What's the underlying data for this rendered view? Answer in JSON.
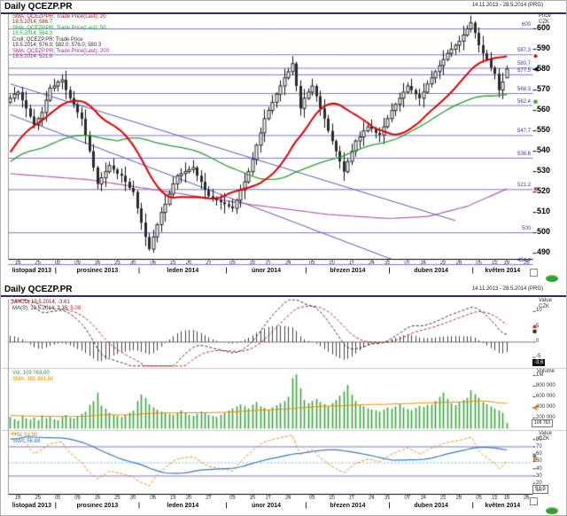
{
  "window1": {
    "title": "Daily QCEZP.PR",
    "date_range": "14.11.2013 - 28.5.2014 (PRG)",
    "y_axis": {
      "unit1": "Price",
      "unit2": "CZK"
    },
    "legend": [
      {
        "line1": "SMA; QCEZP.PR; Trade Price(Last); 20",
        "line2": "19.5.2014; 586.7",
        "color": "#cc1111"
      },
      {
        "line1": "SMA; QCEZP.PR; Trade Price(Last); 50",
        "line2": "19.5.2014; 564.3",
        "color": "#2e9e2e"
      },
      {
        "line1": "Cndl; QCEZP.PR; Trade Price",
        "line2": "19.5.2014; 576.0; 582.0; 576.0; 580.3",
        "color": "#333333"
      },
      {
        "line1": "SMA; QCEZP.PR; Trade Price(Last); 200",
        "line2": "19.5.2014; 521.6",
        "color": "#a03090"
      }
    ]
  },
  "window2": {
    "title": "Daily QCEZP.PR",
    "date_range": "14.11.2013 - 28.5.2014 (PRG)",
    "panes": {
      "macd": {
        "unit1": "Value",
        "unit2": "CZK",
        "legend1": "MACD; 19.5.2014; -3.61",
        "legend2a": "MA(S); 19.5.2014; 3.35; ",
        "legend2b": "5.08",
        "legend_colors": [
          "#8b2020",
          "#333333",
          "#cc2222"
        ],
        "badge": "-3.6"
      },
      "volume": {
        "unit": "Volume",
        "legend1": "Vol; 109 763,00",
        "legend2": "SMA; 391 381,60",
        "legend_colors": [
          "#2e9e2e",
          "#ee8800"
        ],
        "badge": "109 763"
      },
      "rsi": {
        "unit1": "Value",
        "unit2": "CZK",
        "legend1": "RSI; 51.90",
        "legend2": "SMA; 56.88",
        "legend_colors": [
          "#ee8800",
          "#3a7abf"
        ],
        "badge": "51.9"
      }
    }
  },
  "chart_data": {
    "type": "candlestick",
    "symbol": "QCEZP.PR",
    "period": "Daily",
    "x_range": "14.11.2013 - 28.5.2014",
    "ylim": [
      487,
      607
    ],
    "total_slots": 132,
    "y_ticks": [
      600,
      590,
      580,
      570,
      560,
      550,
      540,
      530,
      520,
      510,
      500,
      490
    ],
    "levels": [
      {
        "v": 600.0,
        "label": "600"
      },
      {
        "v": 587.3,
        "label": "587.3"
      },
      {
        "v": 580.7,
        "label": "580.7"
      },
      {
        "v": 577.5,
        "label": "577.5"
      },
      {
        "v": 568.3,
        "label": "568.3"
      },
      {
        "v": 562.4,
        "label": "562.4"
      },
      {
        "v": 547.7,
        "label": "547.7"
      },
      {
        "v": 536.6,
        "label": "536.6"
      },
      {
        "v": 521.2,
        "label": "521.2"
      },
      {
        "v": 500.0,
        "label": "500"
      },
      {
        "v": 484.4,
        "label": "484.4"
      }
    ],
    "trendlines": [
      {
        "from": [
          0,
          573
        ],
        "to": [
          112,
          506
        ]
      },
      {
        "from": [
          0,
          558
        ],
        "to": [
          96,
          487
        ]
      }
    ],
    "last_candle": {
      "date": "19.5.2014",
      "open": 576.0,
      "high": 582.0,
      "low": 576.0,
      "close": 580.3
    },
    "sma20_last": 586.7,
    "sma50_last": 564.3,
    "sma200_last": 521.6,
    "sma200_points": [
      [
        0,
        529
      ],
      [
        20,
        526
      ],
      [
        40,
        520
      ],
      [
        60,
        514
      ],
      [
        80,
        509
      ],
      [
        95,
        507
      ],
      [
        105,
        508
      ],
      [
        115,
        513
      ],
      [
        125,
        521.6
      ]
    ],
    "pre_closes": [
      500,
      504,
      508,
      512,
      515,
      518,
      520,
      523,
      526,
      529,
      532,
      535,
      538,
      541,
      544,
      547,
      550,
      553,
      556,
      560,
      562,
      564
    ],
    "closes": [
      566,
      568,
      569,
      565,
      561,
      557,
      553,
      556,
      559,
      565,
      571,
      572,
      574,
      575,
      570,
      566,
      563,
      559,
      556,
      548,
      540,
      532,
      524,
      527,
      530,
      533,
      531,
      529,
      528,
      525,
      522,
      520,
      512,
      505,
      498,
      492,
      498,
      504,
      510,
      514,
      519,
      524,
      528,
      529,
      530,
      531,
      532,
      528,
      525,
      521,
      518,
      517,
      516,
      515,
      514,
      513,
      512,
      516,
      521,
      525,
      530,
      536,
      543,
      549,
      556,
      560,
      564,
      568,
      572,
      576,
      579,
      583,
      572,
      561,
      566,
      569,
      572,
      567,
      561,
      556,
      550,
      545,
      540,
      535,
      530,
      535,
      540,
      545,
      547,
      550,
      552,
      551,
      549,
      548,
      552,
      556,
      560,
      563,
      566,
      569,
      572,
      570,
      568,
      566,
      569,
      573,
      576,
      579,
      582,
      585,
      588,
      590,
      592,
      594,
      597,
      600,
      603,
      598,
      592,
      588,
      585,
      581,
      578,
      570,
      574,
      580.3
    ],
    "pre_volumes_thousands": [
      250,
      250,
      250,
      250,
      250,
      250,
      250,
      250,
      250,
      250,
      250,
      250,
      250,
      250,
      250,
      250,
      250,
      250,
      250,
      250,
      250,
      250
    ],
    "volumes_thousands": [
      220,
      180,
      150,
      240,
      190,
      170,
      210,
      160,
      250,
      200,
      230,
      180,
      160,
      220,
      260,
      210,
      190,
      240,
      280,
      320,
      450,
      520,
      680,
      430,
      380,
      300,
      260,
      240,
      220,
      260,
      300,
      340,
      520,
      640,
      580,
      460,
      400,
      360,
      320,
      300,
      280,
      260,
      300,
      340,
      300,
      260,
      240,
      280,
      320,
      300,
      260,
      240,
      220,
      260,
      300,
      340,
      380,
      420,
      460,
      420,
      380,
      450,
      500,
      420,
      390,
      360,
      400,
      440,
      480,
      520,
      600,
      950,
      1020,
      760,
      540,
      480,
      520,
      560,
      500,
      460,
      420,
      480,
      540,
      620,
      700,
      820,
      640,
      520,
      450,
      420,
      380,
      360,
      340,
      320,
      360,
      400,
      380,
      420,
      460,
      400,
      370,
      350,
      390,
      430,
      410,
      450,
      450,
      520,
      600,
      680,
      560,
      480,
      440,
      500,
      540,
      580,
      720,
      650,
      580,
      500,
      460,
      420,
      380,
      340,
      300,
      110
    ],
    "macd_ticks": [
      10,
      5,
      0,
      -5
    ],
    "volume_ticks": [
      {
        "v": 1000,
        "l": "1M"
      },
      {
        "v": 800,
        "l": "800 000"
      },
      {
        "v": 600,
        "l": "600 000"
      },
      {
        "v": 400,
        "l": "400 000"
      },
      {
        "v": 200,
        "l": "200 000"
      }
    ],
    "rsi_ticks": [
      80,
      70,
      60,
      50,
      40,
      30,
      20,
      10
    ],
    "rsi_levels": [
      70,
      30
    ],
    "rsi_mid": 48,
    "x_ticks": [
      {
        "l": "18",
        "i": 2
      },
      {
        "l": "25",
        "i": 7
      },
      {
        "l": "02",
        "i": 12
      },
      {
        "l": "09",
        "i": 17
      },
      {
        "l": "16",
        "i": 22
      },
      {
        "l": "23",
        "i": 27
      },
      {
        "l": "30",
        "i": 31
      },
      {
        "l": "06",
        "i": 36
      },
      {
        "l": "13",
        "i": 41
      },
      {
        "l": "20",
        "i": 45
      },
      {
        "l": "27",
        "i": 50
      },
      {
        "l": "03",
        "i": 56
      },
      {
        "l": "10",
        "i": 61
      },
      {
        "l": "17",
        "i": 65
      },
      {
        "l": "24",
        "i": 70
      },
      {
        "l": "03",
        "i": 76
      },
      {
        "l": "10",
        "i": 81
      },
      {
        "l": "17",
        "i": 86
      },
      {
        "l": "24",
        "i": 91
      },
      {
        "l": "31",
        "i": 95
      },
      {
        "l": "07",
        "i": 100
      },
      {
        "l": "14",
        "i": 104
      },
      {
        "l": "22",
        "i": 109
      },
      {
        "l": "28",
        "i": 113
      },
      {
        "l": "05",
        "i": 118
      },
      {
        "l": "12",
        "i": 122
      },
      {
        "l": "19",
        "i": 125
      },
      {
        "l": "26",
        "i": 130
      }
    ],
    "months": [
      {
        "l": "listopad 2013",
        "c": 5.5
      },
      {
        "l": "prosinec 2013",
        "c": 22
      },
      {
        "l": "leden 2014",
        "c": 43.5
      },
      {
        "l": "únor 2014",
        "c": 64.5
      },
      {
        "l": "březen 2014",
        "c": 85
      },
      {
        "l": "duben 2014",
        "c": 106
      },
      {
        "l": "květen 2014",
        "c": 124
      }
    ],
    "month_separators": [
      11.5,
      32.5,
      54.5,
      74.5,
      95.5,
      116.5
    ],
    "markers": {
      "main": [
        {
          "v": 586.7,
          "color": "#dd0000",
          "shape": "circle"
        },
        {
          "v": 580.3,
          "color": "#000000",
          "shape": "tri"
        },
        {
          "v": 564.3,
          "color": "#2e9e2e",
          "shape": "square"
        },
        {
          "v": 521.6,
          "color": "#c03399",
          "shape": "circle"
        }
      ],
      "macd": [
        {
          "v": 5.0,
          "color": "#dd2222",
          "shape": "circle"
        },
        {
          "v": 3.5,
          "color": "#222222",
          "shape": "square"
        }
      ],
      "volume": [
        {
          "v": 391,
          "color": "#ee8800",
          "shape": "tri"
        }
      ],
      "rsi": [
        {
          "v": 57,
          "color": "#3a7abf",
          "shape": "circle"
        },
        {
          "v": 53,
          "color": "#ee8800",
          "shape": "circle"
        }
      ]
    },
    "colors": {
      "sma20": "#dd0000",
      "sma50": "#2e9e2e",
      "sma200": "#b85ba8",
      "level": "#7878c8",
      "trend": "#5858b8",
      "candle_up": "#ffffff",
      "candle_down": "#2a2a2a",
      "macd": "#333333",
      "signal": "#cc2222",
      "hist": "#444444",
      "volume": "#3aa53a",
      "vol_sma": "#ee8800",
      "rsi": "#ee8800",
      "rsi_sma": "#3a7abf",
      "rsi_mid": "#66b8d8"
    }
  }
}
